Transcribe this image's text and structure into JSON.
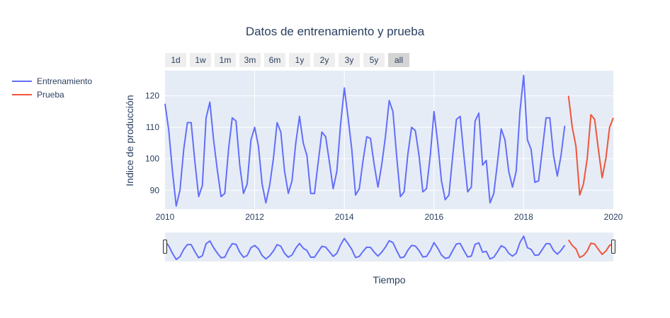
{
  "chart_data": {
    "type": "line",
    "title": "Datos de entrenamiento y prueba",
    "xlabel": "Tiempo",
    "ylabel": "Indice de producción",
    "xlim": [
      2010,
      2020
    ],
    "ylim": [
      84,
      128
    ],
    "x_ticks": [
      "2010",
      "2012",
      "2014",
      "2016",
      "2018",
      "2020"
    ],
    "y_ticks": [
      "90",
      "100",
      "110",
      "120"
    ],
    "grid": true,
    "legend_position": "left",
    "range_selector": [
      "1d",
      "1w",
      "1m",
      "3m",
      "6m",
      "1y",
      "2y",
      "3y",
      "5y",
      "all"
    ],
    "range_selector_active": "all",
    "range_slider": true,
    "series": [
      {
        "name": "Entrenamiento",
        "color": "#636efa",
        "start": 2010.0,
        "step": 0.08333,
        "values": [
          117.5,
          109,
          96,
          85,
          90,
          103,
          111.5,
          111.5,
          99,
          88,
          91.5,
          113,
          118,
          106,
          96.5,
          88,
          89,
          103,
          113,
          112,
          98,
          89,
          92,
          106,
          110,
          104,
          92,
          86,
          91.5,
          100,
          111.5,
          108.5,
          96,
          89,
          93,
          105,
          113.5,
          105,
          101,
          89,
          89,
          99,
          108.5,
          107,
          99,
          90.5,
          96,
          111,
          122.5,
          113,
          103,
          88.5,
          90.5,
          99.5,
          107,
          106.5,
          98,
          91,
          98,
          107,
          118.5,
          115,
          101,
          88,
          89.5,
          101.5,
          110,
          109,
          101,
          89.5,
          90.5,
          101,
          115,
          105,
          93,
          87,
          88.5,
          101,
          112.5,
          113.5,
          101,
          89.5,
          91,
          112,
          114.5,
          98,
          99.5,
          86,
          89,
          99,
          109.5,
          106,
          96,
          91,
          96,
          115,
          126.5,
          106,
          103,
          92.5,
          93,
          103,
          113,
          113,
          101,
          94.5,
          101,
          110.5
        ]
      },
      {
        "name": "Prueba",
        "color": "#ef553b",
        "start": 2019.0,
        "step": 0.08333,
        "values": [
          120,
          110,
          104,
          88.5,
          92,
          100,
          114,
          112.5,
          103,
          94,
          100,
          110,
          113
        ]
      }
    ]
  }
}
